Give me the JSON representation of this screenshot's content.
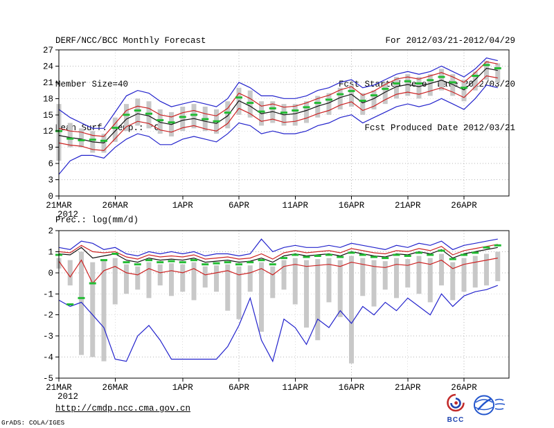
{
  "header": {
    "title": "DERF/NCC/BCC Monthly Forecast",
    "member_size": "Member Size=40",
    "for_range": "For 2012/03/21-2012/04/29",
    "fcst_started": "Fcst Started Refer Date 2012/03/20",
    "fcst_produced": "Fcst Produced Date 2012/03/21"
  },
  "footer": {
    "link": "http://cmdp.ncc.cma.gov.cn",
    "grads_credit": "GrADS: COLA/IGES",
    "bcc_logo_label": "BCC"
  },
  "colors": {
    "envelope_blue": "#2222cc",
    "percentile_red": "#cc2222",
    "mean_black": "#111111",
    "median_green": "#22bb33",
    "spread_gray": "#c8c8c8"
  },
  "chart_data": [
    {
      "type": "line",
      "title": "Mean Surf. Temp.: °C",
      "n_days": 40,
      "x_tick_labels": [
        "21MAR",
        "26MAR",
        "1APR",
        "6APR",
        "11APR",
        "16APR",
        "21APR",
        "26APR"
      ],
      "x_tick_days": [
        0,
        5,
        11,
        16,
        21,
        26,
        31,
        36
      ],
      "x_year_label": "2012",
      "ylim": [
        0,
        27
      ],
      "y_ticks": [
        0,
        3,
        6,
        9,
        12,
        15,
        18,
        21,
        24,
        27
      ],
      "series": [
        {
          "name": "ensemble-max-blue",
          "color": "#2222cc",
          "values": [
            16.0,
            14.5,
            13.5,
            12.5,
            12.5,
            15.5,
            18.5,
            19.5,
            19.0,
            17.5,
            16.5,
            17.0,
            17.5,
            17.0,
            16.5,
            18.0,
            21.0,
            20.0,
            18.5,
            18.5,
            18.0,
            18.0,
            18.5,
            19.5,
            20.0,
            21.0,
            21.5,
            20.0,
            20.5,
            21.5,
            22.5,
            23.0,
            22.5,
            23.0,
            24.0,
            23.0,
            22.0,
            23.5,
            25.5,
            25.0
          ]
        },
        {
          "name": "upper-percentile-red",
          "color": "#cc2222",
          "values": [
            12.5,
            12.0,
            11.8,
            11.2,
            11.0,
            13.4,
            15.8,
            16.6,
            16.2,
            15.0,
            14.6,
            15.4,
            15.8,
            15.2,
            14.8,
            16.2,
            19.0,
            18.0,
            16.6,
            17.0,
            16.4,
            16.6,
            17.2,
            18.0,
            18.6,
            19.6,
            20.2,
            18.6,
            19.4,
            20.6,
            21.6,
            22.0,
            21.6,
            22.2,
            22.8,
            22.0,
            21.0,
            22.8,
            24.8,
            24.4
          ]
        },
        {
          "name": "ensemble-mean-black",
          "color": "#111111",
          "values": [
            11.2,
            10.8,
            10.5,
            10.0,
            9.8,
            12.0,
            14.2,
            15.2,
            14.8,
            13.6,
            13.2,
            14.0,
            14.3,
            13.8,
            13.4,
            14.8,
            17.6,
            16.6,
            15.2,
            15.6,
            15.0,
            15.2,
            15.8,
            16.6,
            17.2,
            18.2,
            18.8,
            17.2,
            18.0,
            19.2,
            20.2,
            20.6,
            20.2,
            20.8,
            21.4,
            20.6,
            19.6,
            21.5,
            23.6,
            23.2
          ]
        },
        {
          "name": "lower-percentile-red",
          "color": "#cc2222",
          "values": [
            9.8,
            9.4,
            9.2,
            8.6,
            8.4,
            10.6,
            12.8,
            13.8,
            13.4,
            12.2,
            11.8,
            12.6,
            13.0,
            12.4,
            12.0,
            13.4,
            16.2,
            15.2,
            13.8,
            14.2,
            13.6,
            13.8,
            14.4,
            15.2,
            15.8,
            16.8,
            17.4,
            15.8,
            16.6,
            17.8,
            18.8,
            19.2,
            18.8,
            19.4,
            20.0,
            19.2,
            18.2,
            20.2,
            22.2,
            21.8
          ]
        },
        {
          "name": "ensemble-min-blue",
          "color": "#2222cc",
          "values": [
            4.0,
            6.5,
            7.5,
            7.5,
            7.0,
            9.0,
            10.5,
            11.5,
            11.0,
            9.5,
            9.5,
            10.5,
            11.0,
            10.5,
            10.0,
            11.5,
            13.5,
            13.0,
            11.5,
            12.0,
            11.5,
            11.5,
            12.0,
            13.0,
            13.5,
            14.5,
            15.0,
            13.5,
            14.5,
            15.5,
            16.5,
            17.0,
            16.5,
            17.0,
            18.0,
            17.0,
            16.0,
            18.0,
            20.5,
            20.0
          ]
        }
      ],
      "median_dashes": {
        "name": "ensemble-median-green",
        "color": "#22bb33",
        "values": [
          12.0,
          10.6,
          10.3,
          10.4,
          10.2,
          12.6,
          15.0,
          15.8,
          15.2,
          14.0,
          13.6,
          14.6,
          15.0,
          14.2,
          13.8,
          15.4,
          18.2,
          17.2,
          15.6,
          16.2,
          15.4,
          15.8,
          16.4,
          17.2,
          17.8,
          18.8,
          19.4,
          17.6,
          18.6,
          19.8,
          20.8,
          21.2,
          20.8,
          21.4,
          22.0,
          21.0,
          20.0,
          22.2,
          24.2,
          23.6
        ]
      },
      "spread_bars": {
        "color": "#c8c8c8",
        "high": [
          17.0,
          13.5,
          12.5,
          12.0,
          11.5,
          14.5,
          17.0,
          18.0,
          17.5,
          16.0,
          15.5,
          16.5,
          17.0,
          16.5,
          16.0,
          17.5,
          20.0,
          19.5,
          17.5,
          17.5,
          17.0,
          17.0,
          17.5,
          18.5,
          19.0,
          20.0,
          20.5,
          19.0,
          19.5,
          21.0,
          22.0,
          22.5,
          22.0,
          22.5,
          23.5,
          22.5,
          21.5,
          23.0,
          25.0,
          24.5
        ],
        "low": [
          6.5,
          9.0,
          9.0,
          8.0,
          8.0,
          10.0,
          12.0,
          13.0,
          12.5,
          11.5,
          11.0,
          12.0,
          12.5,
          12.0,
          11.5,
          12.5,
          15.0,
          14.5,
          13.0,
          13.5,
          13.0,
          13.0,
          13.5,
          14.5,
          15.0,
          16.0,
          16.5,
          15.0,
          16.0,
          17.0,
          18.0,
          18.5,
          18.0,
          18.5,
          19.5,
          18.5,
          17.5,
          19.5,
          21.5,
          21.0
        ]
      }
    },
    {
      "type": "line",
      "title": "Prec.: log(mm/d)",
      "n_days": 40,
      "x_tick_labels": [
        "21MAR",
        "26MAR",
        "1APR",
        "6APR",
        "11APR",
        "16APR",
        "21APR",
        "26APR"
      ],
      "x_tick_days": [
        0,
        5,
        11,
        16,
        21,
        26,
        31,
        36
      ],
      "x_year_label": "2012",
      "ylim": [
        -5,
        2
      ],
      "y_ticks": [
        -5,
        -4,
        -3,
        -2,
        -1,
        0,
        1,
        2
      ],
      "series": [
        {
          "name": "ensemble-max-blue",
          "color": "#2222cc",
          "values": [
            1.2,
            1.1,
            1.5,
            1.4,
            1.1,
            1.2,
            0.9,
            0.8,
            1.0,
            0.9,
            1.0,
            0.9,
            1.0,
            0.8,
            0.9,
            0.9,
            0.8,
            0.9,
            1.6,
            1.0,
            1.2,
            1.3,
            1.2,
            1.2,
            1.3,
            1.2,
            1.4,
            1.3,
            1.2,
            1.1,
            1.3,
            1.2,
            1.4,
            1.3,
            1.5,
            1.1,
            1.3,
            1.4,
            1.5,
            1.6
          ]
        },
        {
          "name": "upper-percentile-red",
          "color": "#cc2222",
          "values": [
            1.0,
            0.95,
            1.3,
            1.0,
            0.95,
            1.0,
            0.75,
            0.65,
            0.85,
            0.75,
            0.8,
            0.75,
            0.85,
            0.65,
            0.7,
            0.75,
            0.65,
            0.7,
            0.9,
            0.65,
            0.95,
            1.05,
            0.95,
            1.0,
            1.05,
            0.95,
            1.15,
            1.05,
            0.95,
            0.9,
            1.05,
            1.0,
            1.15,
            1.05,
            1.25,
            0.85,
            1.05,
            1.15,
            1.25,
            1.35
          ]
        },
        {
          "name": "ensemble-mean-black",
          "color": "#111111",
          "values": [
            0.9,
            0.85,
            1.2,
            0.7,
            0.8,
            0.9,
            0.6,
            0.5,
            0.7,
            0.6,
            0.65,
            0.6,
            0.7,
            0.5,
            0.55,
            0.6,
            0.5,
            0.55,
            0.7,
            0.5,
            0.8,
            0.9,
            0.8,
            0.85,
            0.9,
            0.8,
            1.0,
            0.9,
            0.8,
            0.75,
            0.9,
            0.85,
            1.0,
            0.9,
            1.1,
            0.7,
            0.9,
            1.0,
            1.1,
            1.2
          ]
        },
        {
          "name": "lower-percentile-red",
          "color": "#cc2222",
          "values": [
            0.55,
            -0.2,
            0.6,
            -0.5,
            0.1,
            0.3,
            0.0,
            -0.1,
            0.2,
            0.0,
            0.1,
            0.0,
            0.2,
            -0.1,
            0.0,
            0.1,
            -0.1,
            0.0,
            0.2,
            -0.1,
            0.3,
            0.4,
            0.3,
            0.35,
            0.4,
            0.3,
            0.5,
            0.4,
            0.3,
            0.25,
            0.4,
            0.35,
            0.5,
            0.4,
            0.6,
            0.2,
            0.4,
            0.5,
            0.6,
            0.7
          ]
        },
        {
          "name": "ensemble-min-blue",
          "color": "#2222cc",
          "values": [
            -1.3,
            -1.6,
            -1.4,
            -2.0,
            -2.6,
            -4.1,
            -4.2,
            -3.0,
            -2.5,
            -3.2,
            -4.1,
            -4.1,
            -4.1,
            -4.1,
            -4.1,
            -3.5,
            -2.5,
            -1.2,
            -3.2,
            -4.2,
            -2.2,
            -2.6,
            -3.4,
            -2.2,
            -2.6,
            -1.8,
            -2.4,
            -1.6,
            -2.0,
            -1.4,
            -1.8,
            -1.2,
            -1.6,
            -2.0,
            -1.0,
            -1.6,
            -1.1,
            -0.9,
            -0.8,
            -0.6
          ]
        }
      ],
      "median_dashes": {
        "name": "ensemble-median-green",
        "color": "#22bb33",
        "values": [
          0.85,
          -1.5,
          -1.2,
          -0.5,
          0.6,
          0.9,
          0.5,
          0.4,
          0.6,
          0.5,
          0.55,
          0.5,
          0.6,
          0.4,
          0.45,
          0.5,
          0.4,
          0.5,
          0.6,
          0.4,
          0.7,
          0.85,
          0.75,
          0.8,
          0.85,
          0.75,
          0.95,
          0.85,
          0.75,
          0.7,
          0.85,
          0.8,
          0.95,
          0.85,
          1.05,
          0.65,
          0.85,
          0.95,
          1.2,
          1.3
        ]
      },
      "spread_bars": {
        "color": "#c8c8c8",
        "high": [
          0.7,
          0.6,
          1.0,
          0.5,
          0.6,
          0.7,
          0.4,
          0.3,
          0.5,
          0.4,
          0.45,
          0.4,
          0.5,
          0.3,
          0.35,
          0.4,
          0.3,
          0.35,
          0.5,
          0.3,
          0.6,
          0.7,
          0.6,
          0.65,
          0.7,
          0.6,
          0.8,
          0.7,
          0.6,
          0.55,
          0.7,
          0.65,
          0.8,
          0.7,
          0.9,
          0.5,
          0.7,
          0.8,
          0.9,
          1.0
        ],
        "low": [
          0.2,
          -0.6,
          -3.9,
          -4.0,
          -4.2,
          -1.5,
          -1.0,
          -0.8,
          -1.2,
          -0.6,
          -1.1,
          -0.9,
          -1.3,
          -0.7,
          -0.9,
          -1.8,
          -2.2,
          -0.9,
          -2.8,
          -1.2,
          -0.8,
          -1.5,
          -2.6,
          -3.2,
          -1.4,
          -2.1,
          -4.3,
          -1.1,
          -1.6,
          -0.8,
          -1.2,
          -0.7,
          -1.0,
          -1.4,
          -0.6,
          -1.3,
          -0.9,
          -0.7,
          -0.6,
          -0.4
        ]
      }
    }
  ]
}
